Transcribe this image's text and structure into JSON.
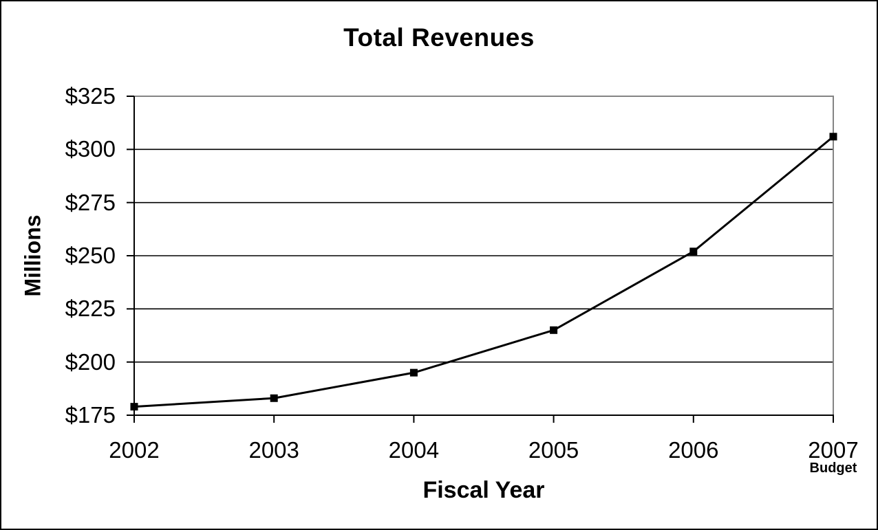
{
  "chart_data": {
    "type": "line",
    "title": "Total Revenues",
    "xlabel": "Fiscal Year",
    "ylabel": "Millions",
    "categories": [
      "2002",
      "2003",
      "2004",
      "2005",
      "2006",
      "2007"
    ],
    "last_category_note": "Budget",
    "series": [
      {
        "name": "Total Revenues",
        "values": [
          179,
          183,
          195,
          215,
          252,
          306
        ]
      }
    ],
    "ylim": [
      175,
      325
    ],
    "y_tick_step": 25,
    "y_ticks": [
      175,
      200,
      225,
      250,
      275,
      300,
      325
    ],
    "y_tick_labels": [
      "$175",
      "$200",
      "$225",
      "$250",
      "$275",
      "$300",
      "$325"
    ],
    "grid": "horizontal",
    "legend": "none",
    "marker": "square",
    "colors": {
      "series": "#000000",
      "gridline": "#000000",
      "axis": "#000000",
      "plot_border": "#848484",
      "text": "#000000",
      "background": "#ffffff"
    }
  }
}
